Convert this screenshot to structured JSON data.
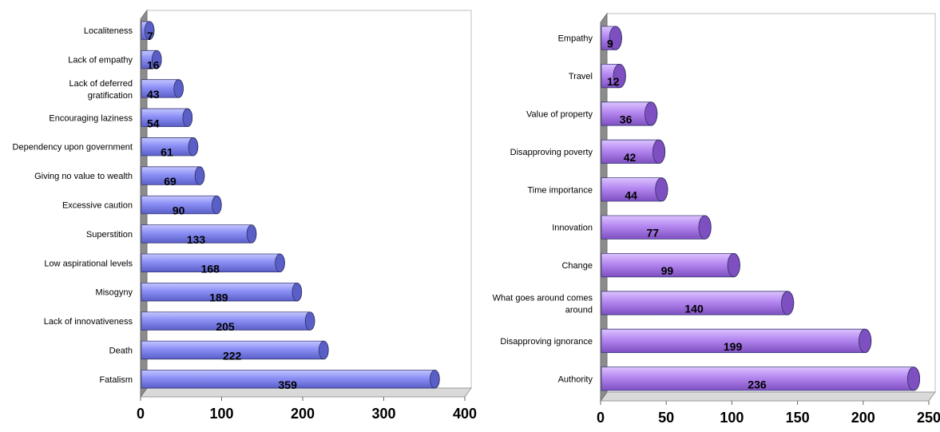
{
  "chart_data": [
    {
      "type": "bar",
      "orientation": "horizontal",
      "style": "3d-cylinder",
      "title": "",
      "xlabel": "",
      "ylabel": "",
      "categories": [
        "Localiteness",
        "Lack of empathy",
        "Lack of deferred gratification",
        "Encouraging laziness",
        "Dependency upon government",
        "Giving no value to wealth",
        "Excessive caution",
        "Superstition",
        "Low aspirational levels",
        "Misogyny",
        "Lack of innovativeness",
        "Death",
        "Fatalism"
      ],
      "values": [
        7,
        16,
        43,
        54,
        61,
        69,
        90,
        133,
        168,
        189,
        205,
        222,
        359
      ],
      "xlim": [
        0,
        400
      ],
      "xticks": [
        0,
        100,
        200,
        300,
        400
      ],
      "grid": false,
      "legend": "none",
      "colors": {
        "body": "#8b8ff5",
        "top": "#c3c6ff",
        "cap": "#5a5fc8",
        "wall": "#8c8c8c",
        "floor": "#d9d9d9"
      }
    },
    {
      "type": "bar",
      "orientation": "horizontal",
      "style": "3d-cylinder",
      "title": "",
      "xlabel": "",
      "ylabel": "",
      "categories": [
        "Empathy",
        "Travel",
        "Value of property",
        "Disapproving poverty",
        "Time importance",
        "Innovation",
        "Change",
        "What goes around comes around",
        "Disapproving ignorance",
        "Authority"
      ],
      "values": [
        9,
        12,
        36,
        42,
        44,
        77,
        99,
        140,
        199,
        236
      ],
      "xlim": [
        0,
        250
      ],
      "xticks": [
        0,
        50,
        100,
        150,
        200,
        250
      ],
      "grid": false,
      "legend": "none",
      "colors": {
        "body": "#b487f0",
        "top": "#dcc3ff",
        "cap": "#7e4fc0",
        "wall": "#8c8c8c",
        "floor": "#d9d9d9"
      }
    }
  ]
}
